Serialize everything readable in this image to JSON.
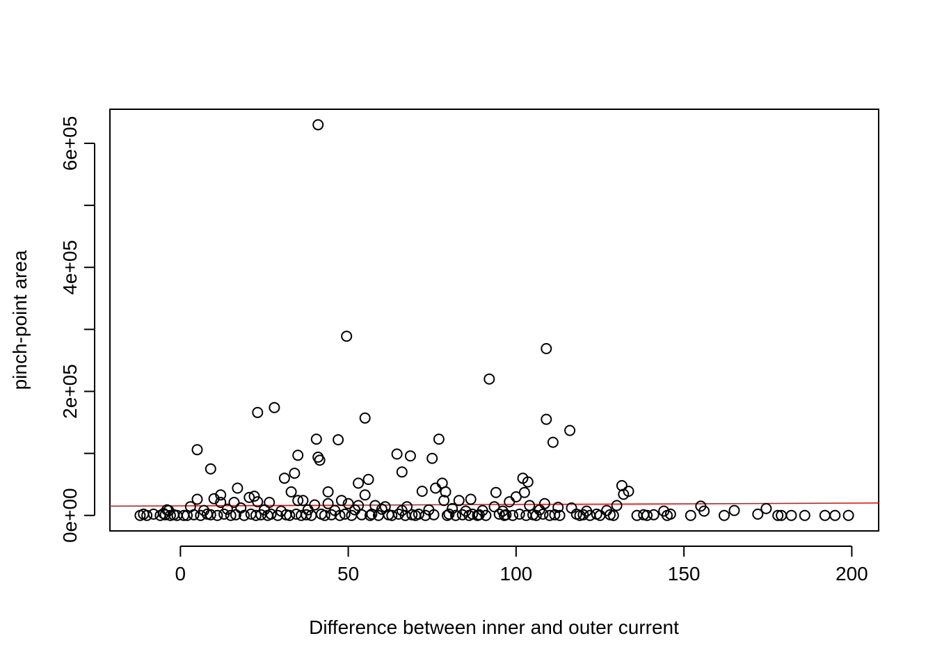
{
  "chart_data": {
    "type": "scatter",
    "title": "",
    "xlabel": "Difference between inner and outer current",
    "ylabel": "pinch-point area",
    "xlim": [
      -21,
      208
    ],
    "ylim": [
      -25000,
      655000
    ],
    "x_ticks": [
      0,
      50,
      100,
      150,
      200
    ],
    "x_tick_labels": [
      "0",
      "50",
      "100",
      "150",
      "200"
    ],
    "y_ticks": [
      0,
      100000,
      200000,
      300000,
      400000,
      500000,
      600000
    ],
    "y_tick_labels": [
      "0e+00",
      "",
      "2e+05",
      "",
      "4e+05",
      "",
      "6e+05"
    ],
    "grid": false,
    "legend": "none",
    "point_color": "#000000",
    "trend_line": {
      "color": "#ff0000",
      "x": [
        -21,
        208
      ],
      "y": [
        15000,
        20000
      ]
    },
    "points": [
      [
        41,
        630000
      ],
      [
        49.5,
        289000
      ],
      [
        109,
        269000
      ],
      [
        92,
        220000
      ],
      [
        28,
        174000
      ],
      [
        23,
        166000
      ],
      [
        55,
        157000
      ],
      [
        109,
        155000
      ],
      [
        116,
        137000
      ],
      [
        40.5,
        123000
      ],
      [
        47,
        122000
      ],
      [
        77,
        123000
      ],
      [
        111,
        118000
      ],
      [
        5,
        106000
      ],
      [
        35,
        97000
      ],
      [
        41,
        94000
      ],
      [
        41.5,
        89000
      ],
      [
        64.5,
        99000
      ],
      [
        68.5,
        96000
      ],
      [
        75,
        92000
      ],
      [
        9,
        75000
      ],
      [
        66,
        70000
      ],
      [
        34,
        68000
      ],
      [
        31,
        60000
      ],
      [
        56,
        58000
      ],
      [
        53,
        52000
      ],
      [
        78,
        52000
      ],
      [
        102,
        60000
      ],
      [
        103.5,
        54000
      ],
      [
        131.5,
        48000
      ],
      [
        17,
        44000
      ],
      [
        76,
        44000
      ],
      [
        44,
        38000
      ],
      [
        72,
        39000
      ],
      [
        79,
        38000
      ],
      [
        94,
        37000
      ],
      [
        133.5,
        39000
      ],
      [
        12,
        33000
      ],
      [
        22,
        31000
      ],
      [
        33,
        38000
      ],
      [
        55,
        33000
      ],
      [
        100,
        30000
      ],
      [
        102.5,
        37000
      ],
      [
        132,
        34000
      ],
      [
        20.5,
        29000
      ],
      [
        5,
        26000
      ],
      [
        10,
        27000
      ],
      [
        35,
        24000
      ],
      [
        36.5,
        24000
      ],
      [
        48,
        24000
      ],
      [
        78.5,
        24000
      ],
      [
        83,
        24000
      ],
      [
        86.5,
        26000
      ],
      [
        98,
        22000
      ],
      [
        12,
        21000
      ],
      [
        16,
        21000
      ],
      [
        23,
        22000
      ],
      [
        26.5,
        21000
      ],
      [
        40,
        17000
      ],
      [
        44,
        19000
      ],
      [
        50,
        19000
      ],
      [
        53,
        16000
      ],
      [
        58,
        16000
      ],
      [
        61,
        14000
      ],
      [
        67.5,
        14000
      ],
      [
        93.5,
        14000
      ],
      [
        104,
        16000
      ],
      [
        108.5,
        19000
      ],
      [
        112.5,
        13000
      ],
      [
        116.5,
        12000
      ],
      [
        130,
        16000
      ],
      [
        155,
        15000
      ],
      [
        3,
        14000
      ],
      [
        7,
        8000
      ],
      [
        14,
        10000
      ],
      [
        18,
        12000
      ],
      [
        25,
        9000
      ],
      [
        30,
        7000
      ],
      [
        38,
        9000
      ],
      [
        46,
        8000
      ],
      [
        52,
        9000
      ],
      [
        60,
        10000
      ],
      [
        66,
        8000
      ],
      [
        74,
        9000
      ],
      [
        81,
        11000
      ],
      [
        85,
        7000
      ],
      [
        90,
        8000
      ],
      [
        96,
        7000
      ],
      [
        107,
        9000
      ],
      [
        121,
        7000
      ],
      [
        127,
        8000
      ],
      [
        144,
        7000
      ],
      [
        156,
        7000
      ],
      [
        165,
        8000
      ],
      [
        174.5,
        11000
      ],
      [
        -4,
        9000
      ],
      [
        -3.5,
        8000
      ],
      [
        -12,
        0
      ],
      [
        -11,
        2000
      ],
      [
        -10,
        0
      ],
      [
        -8,
        2000
      ],
      [
        -6,
        0
      ],
      [
        -5,
        3000
      ],
      [
        -4.5,
        1000
      ],
      [
        -3,
        0
      ],
      [
        -2,
        1000
      ],
      [
        -1,
        0
      ],
      [
        1,
        0
      ],
      [
        2,
        0
      ],
      [
        4,
        1000
      ],
      [
        6,
        0
      ],
      [
        8,
        2000
      ],
      [
        9,
        1000
      ],
      [
        11,
        0
      ],
      [
        13,
        2000
      ],
      [
        15,
        0
      ],
      [
        16.5,
        1000
      ],
      [
        19,
        0
      ],
      [
        21,
        2000
      ],
      [
        22.5,
        0
      ],
      [
        24,
        1000
      ],
      [
        26,
        0
      ],
      [
        27,
        2000
      ],
      [
        29,
        0
      ],
      [
        31.5,
        1000
      ],
      [
        32.5,
        0
      ],
      [
        34.5,
        2000
      ],
      [
        36,
        0
      ],
      [
        37.5,
        1000
      ],
      [
        39,
        0
      ],
      [
        42,
        2000
      ],
      [
        43,
        0
      ],
      [
        45,
        1000
      ],
      [
        47.5,
        0
      ],
      [
        49,
        2000
      ],
      [
        51,
        0
      ],
      [
        54,
        1000
      ],
      [
        56.5,
        0
      ],
      [
        57,
        2000
      ],
      [
        59,
        0
      ],
      [
        62,
        1000
      ],
      [
        63,
        0
      ],
      [
        65,
        2000
      ],
      [
        67,
        0
      ],
      [
        69,
        1000
      ],
      [
        70,
        0
      ],
      [
        71,
        2000
      ],
      [
        73,
        0
      ],
      [
        75.5,
        1000
      ],
      [
        79.5,
        0
      ],
      [
        80,
        2000
      ],
      [
        82,
        0
      ],
      [
        84,
        1000
      ],
      [
        86,
        0
      ],
      [
        87,
        2000
      ],
      [
        88.5,
        0
      ],
      [
        89,
        1000
      ],
      [
        91,
        0
      ],
      [
        95,
        2000
      ],
      [
        96.5,
        0
      ],
      [
        97,
        1000
      ],
      [
        99,
        0
      ],
      [
        101,
        2000
      ],
      [
        103,
        0
      ],
      [
        105,
        1000
      ],
      [
        106,
        0
      ],
      [
        108,
        2000
      ],
      [
        110,
        0
      ],
      [
        111.5,
        1000
      ],
      [
        113,
        0
      ],
      [
        118,
        2000
      ],
      [
        119,
        0
      ],
      [
        120,
        1000
      ],
      [
        122,
        0
      ],
      [
        124,
        2000
      ],
      [
        125,
        0
      ],
      [
        128,
        1000
      ],
      [
        129,
        0
      ],
      [
        136,
        0
      ],
      [
        138,
        1000
      ],
      [
        139,
        0
      ],
      [
        141,
        1000
      ],
      [
        145,
        0
      ],
      [
        146,
        2000
      ],
      [
        152,
        0
      ],
      [
        162,
        0
      ],
      [
        172,
        2000
      ],
      [
        178,
        0
      ],
      [
        179,
        0
      ],
      [
        182,
        0
      ],
      [
        186,
        0
      ],
      [
        192,
        0
      ],
      [
        195,
        0
      ],
      [
        199,
        0
      ]
    ]
  }
}
